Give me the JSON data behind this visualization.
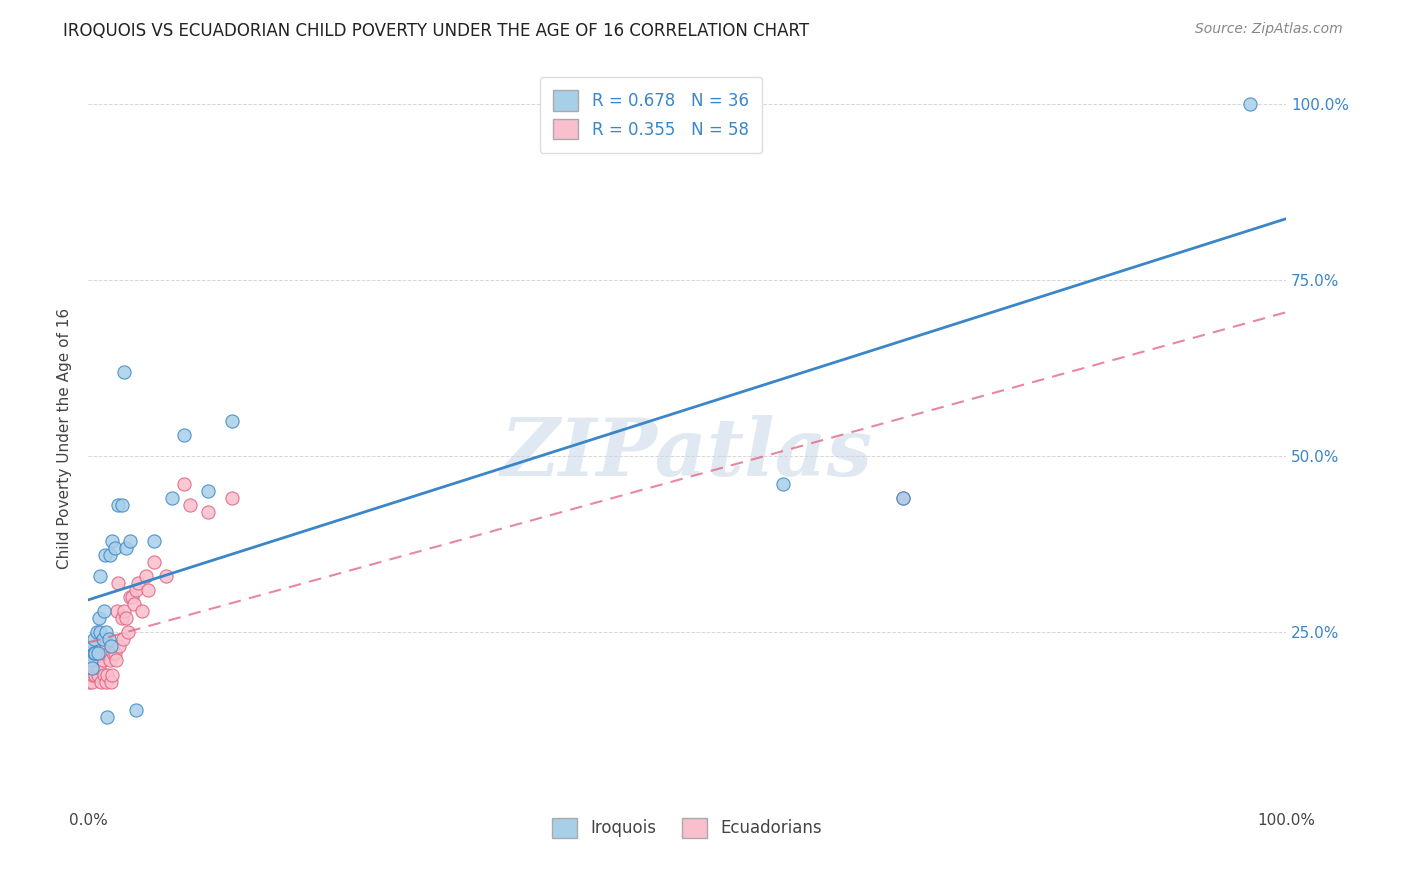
{
  "title": "IROQUOIS VS ECUADORIAN CHILD POVERTY UNDER THE AGE OF 16 CORRELATION CHART",
  "source": "Source: ZipAtlas.com",
  "ylabel": "Child Poverty Under the Age of 16",
  "xlim": [
    0,
    1
  ],
  "ylim": [
    0,
    1.05
  ],
  "iroquois_color": "#a8cfe8",
  "ecuadorian_color": "#f9bfcc",
  "iroquois_line_color": "#3a86c8",
  "ecuadorian_line_color": "#e06080",
  "R_iroquois": 0.678,
  "N_iroquois": 36,
  "R_ecuadorian": 0.355,
  "N_ecuadorian": 58,
  "iroquois_x": [
    0.001,
    0.002,
    0.003,
    0.004,
    0.005,
    0.005,
    0.006,
    0.007,
    0.008,
    0.009,
    0.01,
    0.01,
    0.012,
    0.013,
    0.014,
    0.015,
    0.016,
    0.017,
    0.018,
    0.019,
    0.02,
    0.022,
    0.025,
    0.028,
    0.03,
    0.032,
    0.035,
    0.04,
    0.055,
    0.07,
    0.08,
    0.1,
    0.12,
    0.58,
    0.68,
    0.97
  ],
  "iroquois_y": [
    0.22,
    0.21,
    0.2,
    0.23,
    0.22,
    0.24,
    0.22,
    0.25,
    0.22,
    0.27,
    0.25,
    0.33,
    0.24,
    0.28,
    0.36,
    0.25,
    0.13,
    0.24,
    0.36,
    0.23,
    0.38,
    0.37,
    0.43,
    0.43,
    0.62,
    0.37,
    0.38,
    0.14,
    0.38,
    0.44,
    0.53,
    0.45,
    0.55,
    0.46,
    0.44,
    1.0
  ],
  "ecuadorian_x": [
    0.001,
    0.001,
    0.002,
    0.002,
    0.003,
    0.003,
    0.004,
    0.004,
    0.005,
    0.005,
    0.006,
    0.006,
    0.007,
    0.007,
    0.008,
    0.008,
    0.009,
    0.009,
    0.01,
    0.01,
    0.011,
    0.012,
    0.013,
    0.013,
    0.014,
    0.015,
    0.015,
    0.016,
    0.017,
    0.018,
    0.019,
    0.02,
    0.021,
    0.022,
    0.023,
    0.024,
    0.025,
    0.026,
    0.028,
    0.029,
    0.03,
    0.032,
    0.033,
    0.035,
    0.037,
    0.038,
    0.04,
    0.042,
    0.045,
    0.048,
    0.05,
    0.055,
    0.065,
    0.08,
    0.085,
    0.1,
    0.12,
    0.68
  ],
  "ecuadorian_y": [
    0.19,
    0.18,
    0.2,
    0.19,
    0.21,
    0.18,
    0.19,
    0.2,
    0.21,
    0.22,
    0.2,
    0.19,
    0.22,
    0.21,
    0.19,
    0.22,
    0.2,
    0.23,
    0.22,
    0.24,
    0.18,
    0.21,
    0.22,
    0.19,
    0.24,
    0.18,
    0.23,
    0.19,
    0.22,
    0.21,
    0.18,
    0.19,
    0.22,
    0.22,
    0.21,
    0.28,
    0.32,
    0.23,
    0.27,
    0.24,
    0.28,
    0.27,
    0.25,
    0.3,
    0.3,
    0.29,
    0.31,
    0.32,
    0.28,
    0.33,
    0.31,
    0.35,
    0.33,
    0.46,
    0.43,
    0.42,
    0.44,
    0.44
  ],
  "watermark": "ZIPatlas",
  "background_color": "#ffffff",
  "grid_color": "#cccccc"
}
